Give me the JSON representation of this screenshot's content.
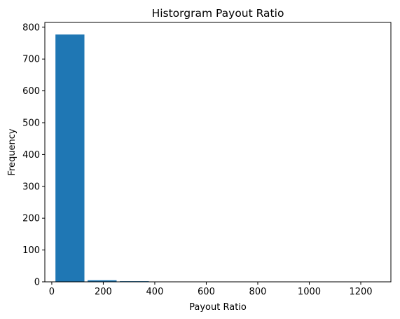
{
  "chart_data": {
    "type": "bar",
    "title": "Historgram Payout Ratio",
    "xlabel": "Payout Ratio",
    "ylabel": "Frequency",
    "xlim": [
      -27,
      1317
    ],
    "ylim": [
      0,
      815
    ],
    "xticks": [
      0,
      200,
      400,
      600,
      800,
      1000,
      1200
    ],
    "yticks": [
      0,
      100,
      200,
      300,
      400,
      500,
      600,
      700,
      800
    ],
    "bar_color": "#1f77b4",
    "bin_width_fraction": 0.9,
    "bins": [
      {
        "start": 8,
        "end": 133,
        "value": 777
      },
      {
        "start": 133,
        "end": 258,
        "value": 5
      },
      {
        "start": 258,
        "end": 383,
        "value": 2
      },
      {
        "start": 383,
        "end": 508,
        "value": 0
      },
      {
        "start": 508,
        "end": 633,
        "value": 1
      },
      {
        "start": 633,
        "end": 758,
        "value": 0
      },
      {
        "start": 758,
        "end": 883,
        "value": 0
      },
      {
        "start": 883,
        "end": 1008,
        "value": 0
      },
      {
        "start": 1008,
        "end": 1133,
        "value": 1
      },
      {
        "start": 1133,
        "end": 1258,
        "value": 1
      }
    ],
    "grid": false,
    "legend": "none"
  }
}
